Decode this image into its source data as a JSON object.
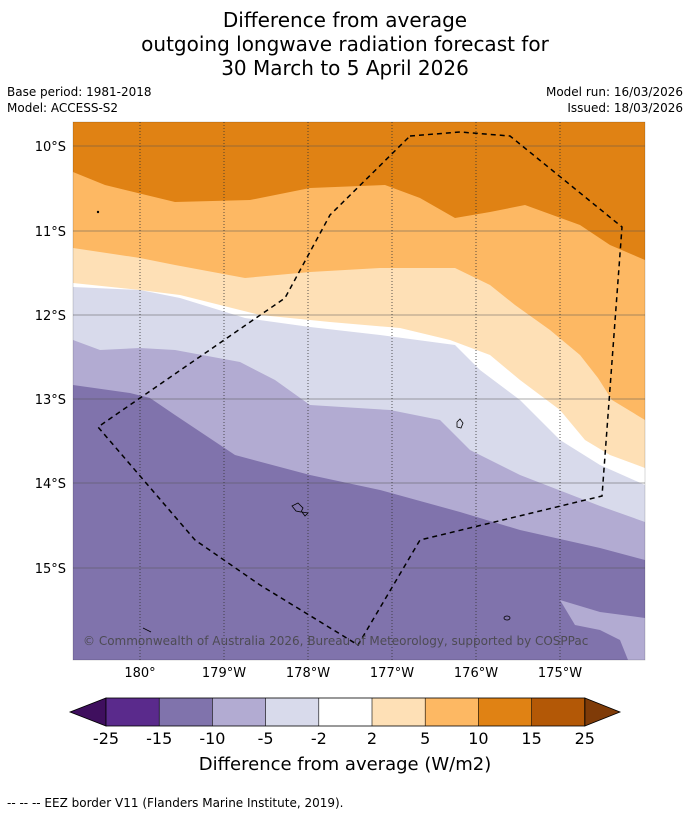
{
  "title": {
    "line1": "Difference from average",
    "line2": "outgoing longwave radiation forecast for",
    "line3": "30 March to 5 April 2026"
  },
  "meta": {
    "base_period": "Base period: 1981-2018",
    "model": "Model: ACCESS-S2",
    "model_run": "Model run: 16/03/2026",
    "issued": "Issued: 18/03/2026"
  },
  "map": {
    "lat_labels": [
      "10°S",
      "11°S",
      "12°S",
      "13°S",
      "14°S",
      "15°S"
    ],
    "lon_labels": [
      "180°",
      "179°W",
      "178°W",
      "177°W",
      "176°W",
      "175°W"
    ],
    "copyright": "© Commonwealth of Australia 2026, Bureau of Meteorology, supported by COSPPac"
  },
  "colorbar": {
    "ticks": [
      "-25",
      "-15",
      "-10",
      "-5",
      "-2",
      "2",
      "5",
      "10",
      "15",
      "25"
    ],
    "label": "Difference from average (W/m2)",
    "colors": [
      "#3f0f5e",
      "#5a2a8c",
      "#8073ac",
      "#b2abd2",
      "#d8daeb",
      "#ffffff",
      "#fee0b6",
      "#fdb863",
      "#e08214",
      "#b35806",
      "#7f3b08"
    ]
  },
  "footer": {
    "legend": "--  --  -- EEZ border V11 (Flanders Marine Institute, 2019)."
  }
}
